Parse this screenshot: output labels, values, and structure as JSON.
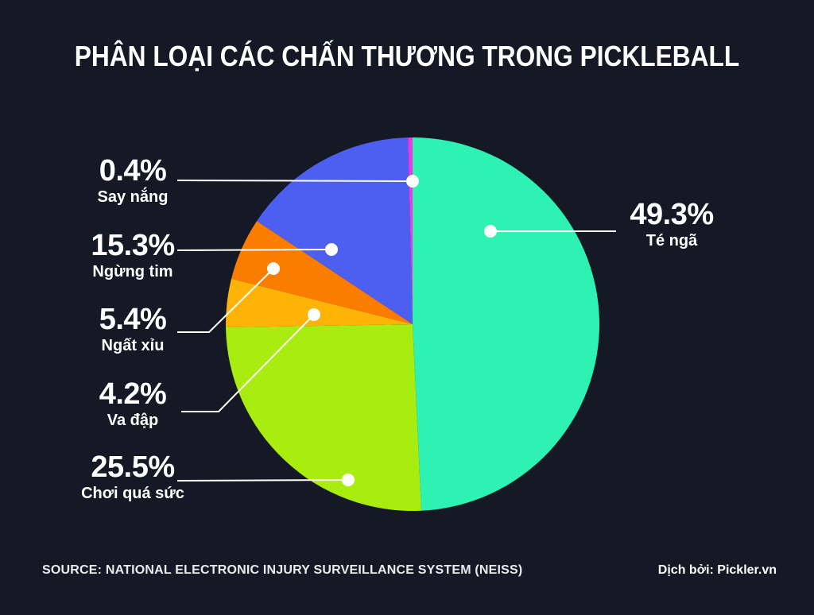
{
  "title": "PHÂN LOẠI CÁC CHẤN THƯƠNG TRONG PICKLEBALL",
  "source": "SOURCE: NATIONAL ELECTRONIC INJURY SURVEILLANCE SYSTEM (NEISS)",
  "credit": "Dịch bởi: Pickler.vn",
  "colors": {
    "background": "#151925",
    "leader_line": "#FFFFFF",
    "leader_dot": "#FFFFFF",
    "title_text": "#FFFFFF",
    "label_text": "#FFFFFF"
  },
  "chart_data": {
    "type": "pie",
    "title": "PHÂN LOẠI CÁC CHẤN THƯƠNG TRONG PICKLEBALL",
    "start_angle_deg": 0,
    "direction": "clockwise",
    "legend_position": "none",
    "categories": [
      "Té ngã",
      "Chơi quá sức",
      "Va đập",
      "Ngất xỉu",
      "Ngừng tim",
      "Say nắng"
    ],
    "values": [
      49.3,
      25.5,
      4.2,
      5.4,
      15.3,
      0.4
    ],
    "slice_colors": [
      "#2DF2B1",
      "#A8EC10",
      "#FFB307",
      "#FA7D00",
      "#4C5FF1",
      "#E93BE2"
    ],
    "labels": [
      {
        "pct": "49.3%",
        "name": "Té ngã"
      },
      {
        "pct": "25.5%",
        "name": "Chơi quá sức"
      },
      {
        "pct": "4.2%",
        "name": "Va đập"
      },
      {
        "pct": "5.4%",
        "name": "Ngất xỉu"
      },
      {
        "pct": "15.3%",
        "name": "Ngừng tim"
      },
      {
        "pct": "0.4%",
        "name": "Say nắng"
      }
    ]
  }
}
